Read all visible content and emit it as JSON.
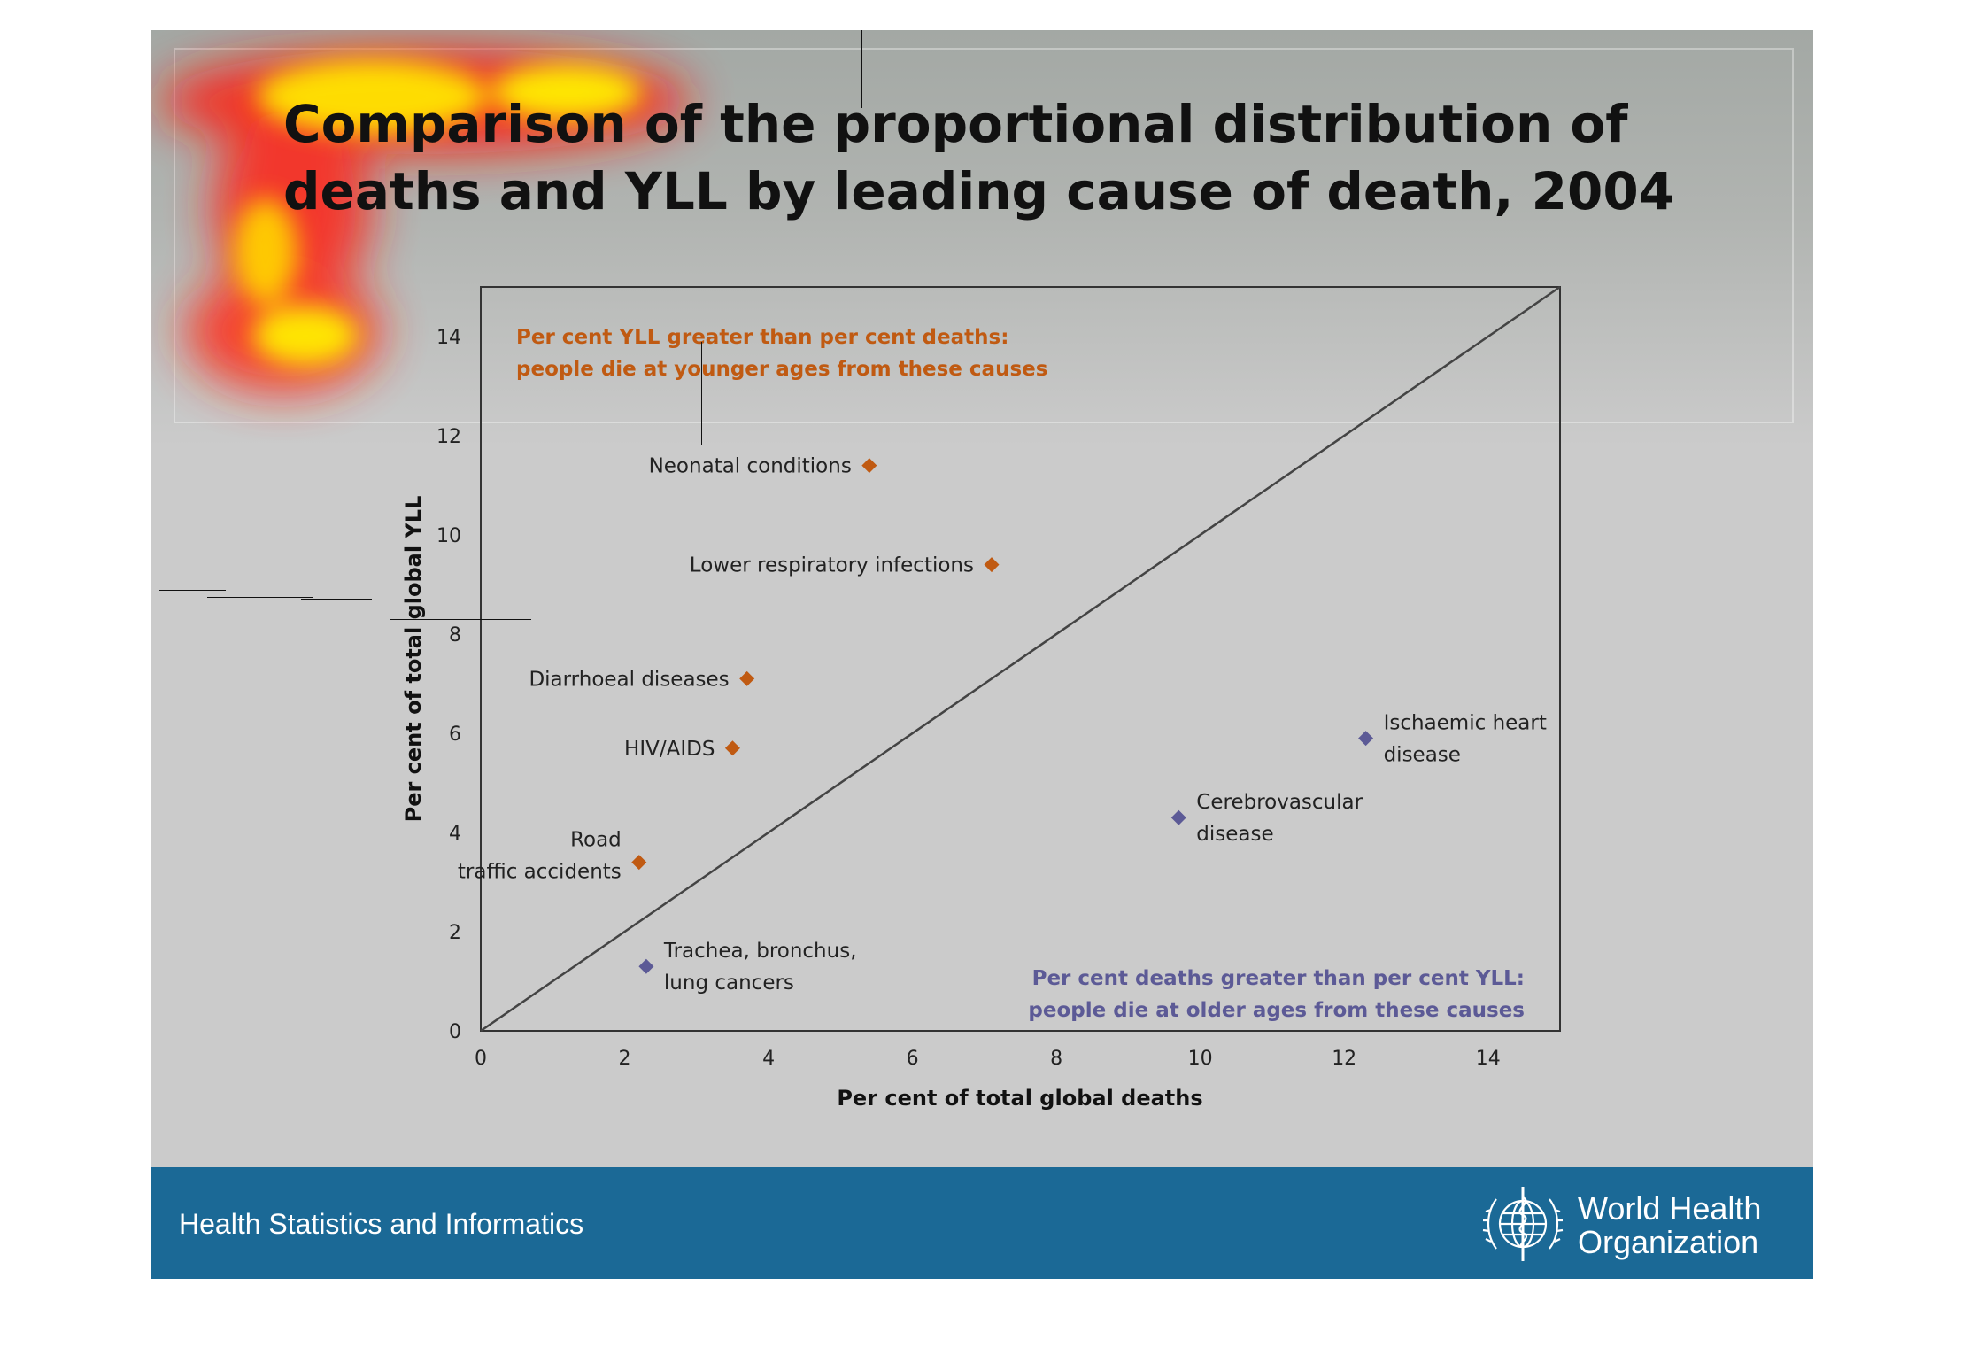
{
  "slide": {
    "title_lines": [
      "Comparison of the proportional distribution of",
      "deaths and YLL by leading cause of death, 2004"
    ]
  },
  "footer": {
    "text": "Health Statistics and Informatics",
    "logo_lines": [
      "World Health",
      "Organization"
    ]
  },
  "colors": {
    "younger": "#c05a12",
    "older": "#5c5a96",
    "footer_band": "#1b6996"
  },
  "chart_data": {
    "type": "scatter",
    "xlabel": "Per cent of total global deaths",
    "ylabel": "Per cent of total global YLL",
    "xlim": [
      0,
      15
    ],
    "ylim": [
      0,
      15
    ],
    "xticks": [
      0,
      2,
      4,
      6,
      8,
      10,
      12,
      14
    ],
    "yticks": [
      0,
      2,
      4,
      6,
      8,
      10,
      12,
      14
    ],
    "reference_line": "y = x",
    "annotations": [
      {
        "group": "younger",
        "lines": [
          "Per cent YLL greater than per cent deaths:",
          "people die at younger ages from these causes"
        ]
      },
      {
        "group": "older",
        "lines": [
          "Per cent deaths greater than per cent YLL:",
          "people die at older ages from these causes"
        ]
      }
    ],
    "series": [
      {
        "group": "younger",
        "points": [
          {
            "label_lines": [
              "Neonatal conditions"
            ],
            "x": 5.4,
            "y": 11.4,
            "label_side": "left"
          },
          {
            "label_lines": [
              "Lower respiratory infections"
            ],
            "x": 7.1,
            "y": 9.4,
            "label_side": "left"
          },
          {
            "label_lines": [
              "Diarrhoeal diseases"
            ],
            "x": 3.7,
            "y": 7.1,
            "label_side": "left"
          },
          {
            "label_lines": [
              "HIV/AIDS"
            ],
            "x": 3.5,
            "y": 5.7,
            "label_side": "left"
          },
          {
            "label_lines": [
              "Road",
              "traffic accidents"
            ],
            "x": 2.2,
            "y": 3.4,
            "label_side": "left"
          }
        ]
      },
      {
        "group": "older",
        "points": [
          {
            "label_lines": [
              "Ischaemic heart",
              "disease"
            ],
            "x": 12.3,
            "y": 5.9,
            "label_side": "right"
          },
          {
            "label_lines": [
              "Cerebrovascular",
              "disease"
            ],
            "x": 9.7,
            "y": 4.3,
            "label_side": "right"
          },
          {
            "label_lines": [
              "Trachea, bronchus,",
              "lung cancers"
            ],
            "x": 2.3,
            "y": 1.3,
            "label_side": "right"
          }
        ]
      }
    ],
    "grid": false,
    "legend": "none"
  }
}
